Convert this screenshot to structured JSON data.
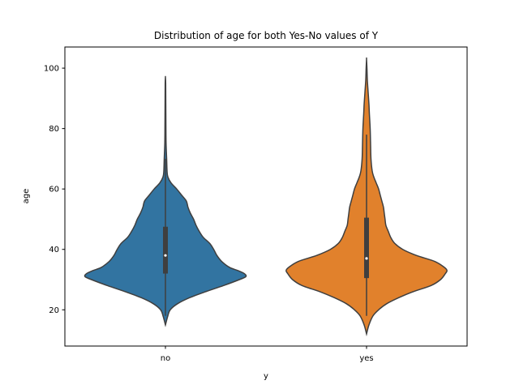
{
  "chart_data": {
    "type": "violin",
    "title": "Distribution of age for both Yes-No values of Y",
    "xlabel": "y",
    "ylabel": "age",
    "categories": [
      "no",
      "yes"
    ],
    "ylim": [
      8,
      107
    ],
    "yticks": [
      20,
      40,
      60,
      80,
      100
    ],
    "grid": false,
    "colors": {
      "no": "#3274a1",
      "yes": "#e1812c",
      "outline": "#3f3f3f"
    },
    "series": [
      {
        "category": "no",
        "min": 15,
        "q1": 32,
        "median": 38,
        "q3": 47.5,
        "max": 97,
        "whisker_low": 18,
        "whisker_high": 70,
        "density": [
          [
            15,
            0.0
          ],
          [
            18,
            0.03
          ],
          [
            20,
            0.06
          ],
          [
            22,
            0.15
          ],
          [
            24,
            0.3
          ],
          [
            26,
            0.5
          ],
          [
            28,
            0.72
          ],
          [
            30,
            0.92
          ],
          [
            31,
            1.0
          ],
          [
            32,
            0.98
          ],
          [
            33,
            0.9
          ],
          [
            34,
            0.8
          ],
          [
            36,
            0.7
          ],
          [
            38,
            0.64
          ],
          [
            40,
            0.6
          ],
          [
            42,
            0.55
          ],
          [
            44,
            0.47
          ],
          [
            46,
            0.42
          ],
          [
            48,
            0.38
          ],
          [
            50,
            0.35
          ],
          [
            52,
            0.31
          ],
          [
            54,
            0.28
          ],
          [
            56,
            0.26
          ],
          [
            58,
            0.2
          ],
          [
            60,
            0.14
          ],
          [
            62,
            0.07
          ],
          [
            64,
            0.03
          ],
          [
            66,
            0.02
          ],
          [
            70,
            0.015
          ],
          [
            75,
            0.008
          ],
          [
            80,
            0.006
          ],
          [
            85,
            0.005
          ],
          [
            90,
            0.004
          ],
          [
            95,
            0.003
          ],
          [
            97,
            0.0
          ]
        ]
      },
      {
        "category": "yes",
        "min": 12,
        "q1": 30.5,
        "median": 37,
        "q3": 50.5,
        "max": 103,
        "whisker_low": 18,
        "whisker_high": 78,
        "density": [
          [
            12,
            0.0
          ],
          [
            15,
            0.03
          ],
          [
            18,
            0.08
          ],
          [
            20,
            0.15
          ],
          [
            22,
            0.25
          ],
          [
            24,
            0.4
          ],
          [
            26,
            0.58
          ],
          [
            28,
            0.8
          ],
          [
            30,
            0.92
          ],
          [
            32,
            0.98
          ],
          [
            33,
            1.0
          ],
          [
            34,
            0.97
          ],
          [
            36,
            0.85
          ],
          [
            38,
            0.62
          ],
          [
            40,
            0.45
          ],
          [
            42,
            0.35
          ],
          [
            44,
            0.3
          ],
          [
            46,
            0.27
          ],
          [
            48,
            0.24
          ],
          [
            50,
            0.23
          ],
          [
            52,
            0.22
          ],
          [
            54,
            0.21
          ],
          [
            56,
            0.19
          ],
          [
            58,
            0.17
          ],
          [
            60,
            0.15
          ],
          [
            62,
            0.12
          ],
          [
            64,
            0.09
          ],
          [
            66,
            0.07
          ],
          [
            70,
            0.055
          ],
          [
            75,
            0.05
          ],
          [
            80,
            0.045
          ],
          [
            85,
            0.035
          ],
          [
            88,
            0.03
          ],
          [
            92,
            0.02
          ],
          [
            96,
            0.01
          ],
          [
            100,
            0.005
          ],
          [
            103,
            0.0
          ]
        ]
      }
    ]
  }
}
